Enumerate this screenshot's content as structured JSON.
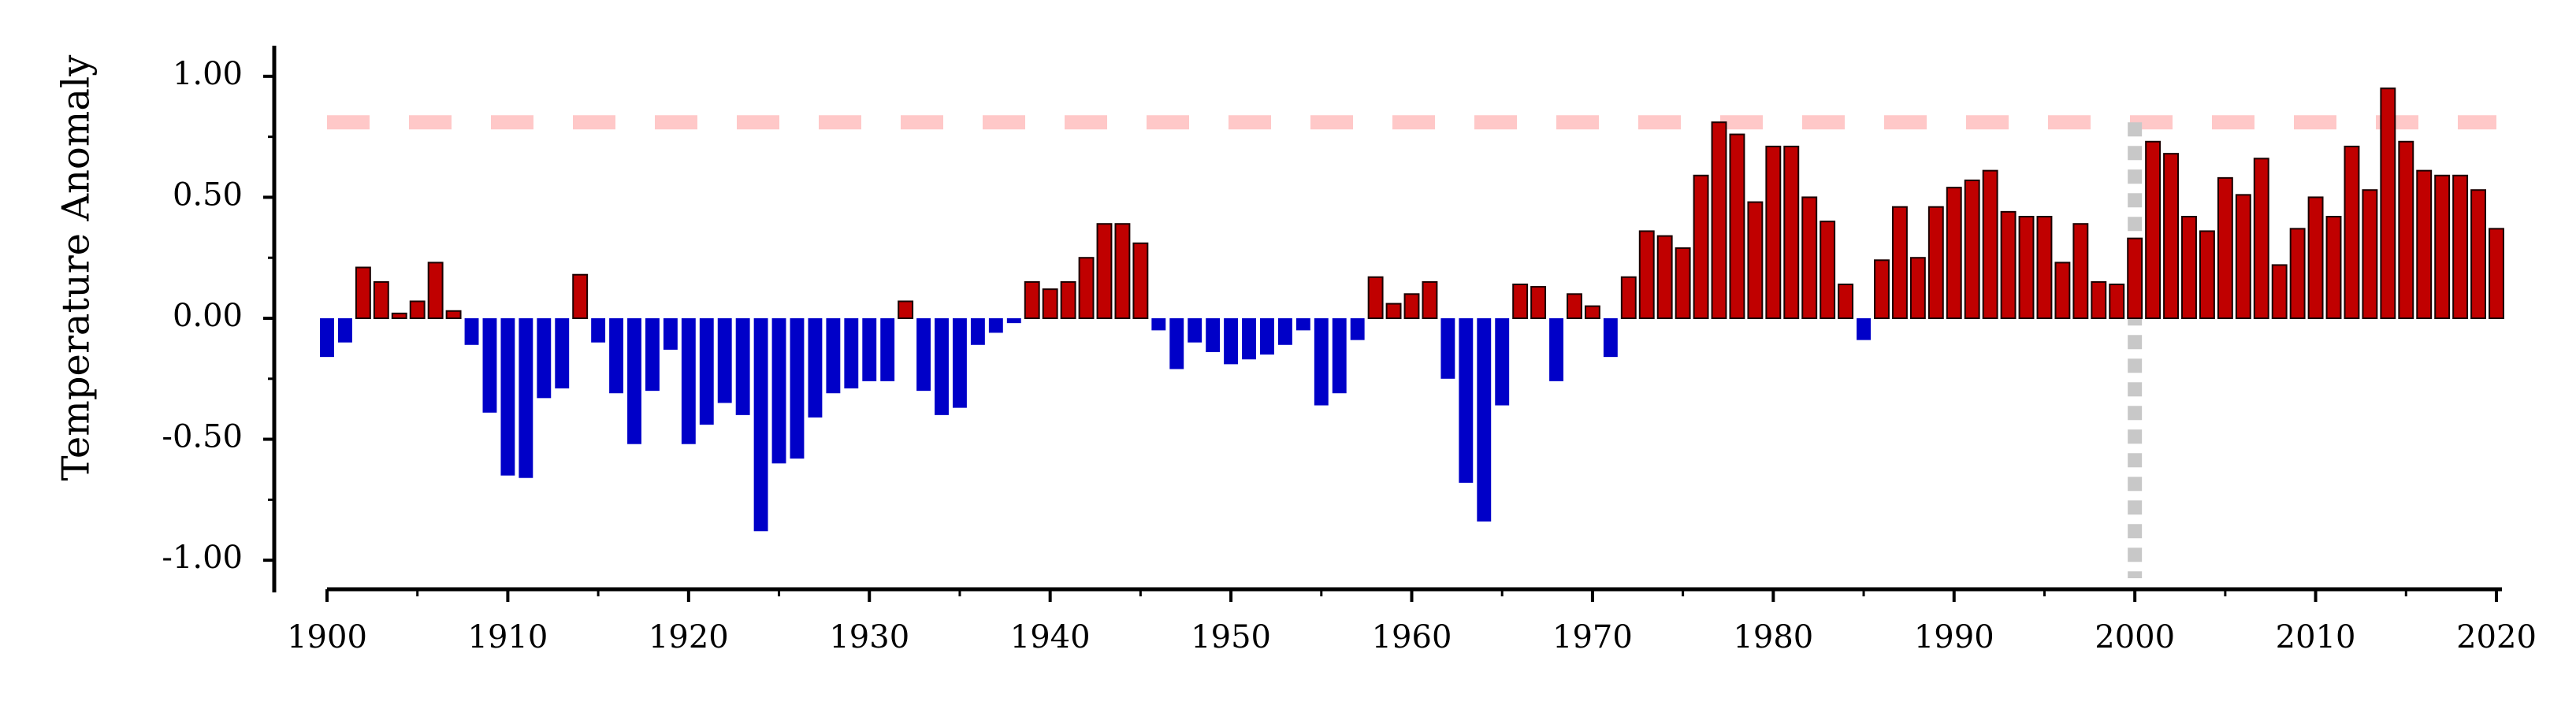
{
  "chart_data": {
    "type": "bar",
    "title": "",
    "xlabel": "",
    "ylabel": "Temperature Anomaly",
    "ylim": [
      -1.12,
      1.12
    ],
    "xlim": [
      1900,
      2020
    ],
    "yticks": [
      "-1.00",
      "-0.50",
      "0.00",
      "0.50",
      "1.00"
    ],
    "xticks": [
      "1900",
      "1910",
      "1920",
      "1930",
      "1940",
      "1950",
      "1960",
      "1970",
      "1980",
      "1990",
      "2000",
      "2010",
      "2020"
    ],
    "grid": false,
    "legend": "none",
    "reference_line_y": 0.81,
    "reference_line_x": 2000,
    "colors": {
      "positive": "#c00000",
      "negative": "#0000c8",
      "positive_edge": "#1a0000",
      "reference_h": "#ffc8c8",
      "reference_v": "#c8c8c8",
      "axis": "#000000"
    },
    "x": [
      1900,
      1901,
      1902,
      1903,
      1904,
      1905,
      1906,
      1907,
      1908,
      1909,
      1910,
      1911,
      1912,
      1913,
      1914,
      1915,
      1916,
      1917,
      1918,
      1919,
      1920,
      1921,
      1922,
      1923,
      1924,
      1925,
      1926,
      1927,
      1928,
      1929,
      1930,
      1931,
      1932,
      1933,
      1934,
      1935,
      1936,
      1937,
      1938,
      1939,
      1940,
      1941,
      1942,
      1943,
      1944,
      1945,
      1946,
      1947,
      1948,
      1949,
      1950,
      1951,
      1952,
      1953,
      1954,
      1955,
      1956,
      1957,
      1958,
      1959,
      1960,
      1961,
      1962,
      1963,
      1964,
      1965,
      1966,
      1967,
      1968,
      1969,
      1970,
      1971,
      1972,
      1973,
      1974,
      1975,
      1976,
      1977,
      1978,
      1979,
      1980,
      1981,
      1982,
      1983,
      1984,
      1985,
      1986,
      1987,
      1988,
      1989,
      1990,
      1991,
      1992,
      1993,
      1994,
      1995,
      1996,
      1997,
      1998,
      1999,
      2000,
      2001,
      2002,
      2003,
      2004,
      2005,
      2006,
      2007,
      2008,
      2009,
      2010,
      2011,
      2012,
      2013,
      2014,
      2015,
      2016,
      2017,
      2018,
      2019,
      2020
    ],
    "values": [
      -0.16,
      -0.1,
      0.21,
      0.15,
      0.02,
      0.07,
      0.23,
      0.03,
      -0.11,
      -0.39,
      -0.65,
      -0.66,
      -0.33,
      -0.29,
      0.18,
      -0.1,
      -0.31,
      -0.52,
      -0.3,
      -0.13,
      -0.52,
      -0.44,
      -0.35,
      -0.4,
      -0.88,
      -0.6,
      -0.58,
      -0.41,
      -0.31,
      -0.29,
      -0.26,
      -0.26,
      0.07,
      -0.3,
      -0.4,
      -0.37,
      -0.11,
      -0.06,
      -0.02,
      0.15,
      0.12,
      0.15,
      0.25,
      0.39,
      0.39,
      0.31,
      -0.05,
      -0.21,
      -0.1,
      -0.14,
      -0.19,
      -0.17,
      -0.15,
      -0.11,
      -0.05,
      -0.36,
      -0.31,
      -0.09,
      0.17,
      0.06,
      0.1,
      0.15,
      -0.25,
      -0.68,
      -0.84,
      -0.36,
      0.14,
      0.13,
      -0.26,
      0.1,
      0.05,
      -0.16,
      0.17,
      0.36,
      0.34,
      0.29,
      0.59,
      0.81,
      0.76,
      0.48,
      0.71,
      0.71,
      0.5,
      0.4,
      0.14,
      -0.09,
      0.24,
      0.46,
      0.25,
      0.46,
      0.54,
      0.57,
      0.61,
      0.44,
      0.42,
      0.42,
      0.23,
      0.39,
      0.15,
      0.14,
      0.33,
      0.73,
      0.68,
      0.42,
      0.36,
      0.58,
      0.51,
      0.66,
      0.22,
      0.37,
      0.5,
      0.42,
      0.71,
      0.53,
      0.95,
      0.73,
      0.61,
      0.59,
      0.59,
      0.53,
      0.37
    ]
  }
}
